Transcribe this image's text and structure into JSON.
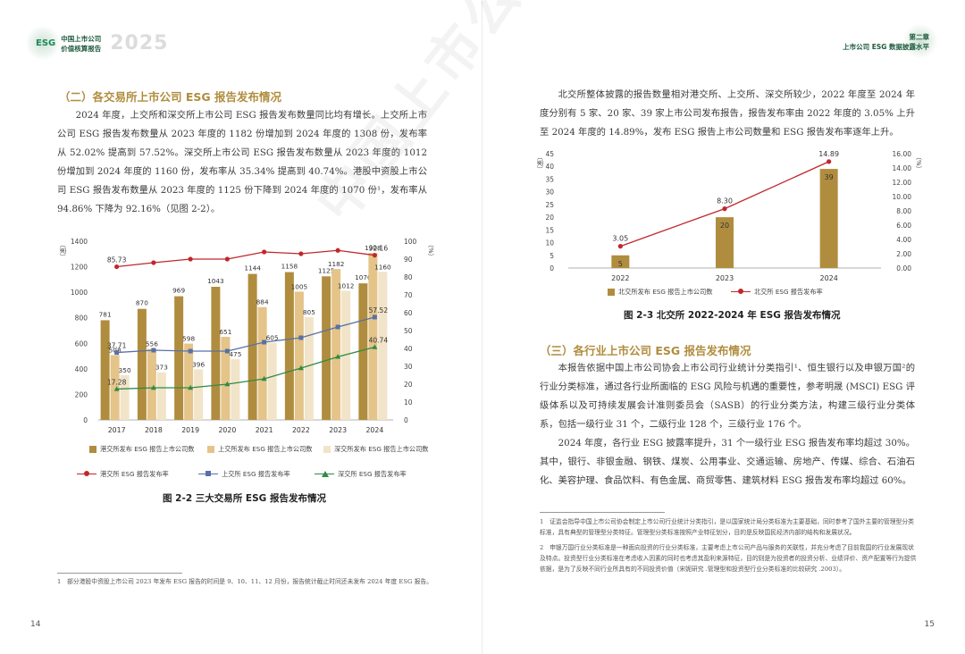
{
  "header": {
    "esg": "ESG",
    "line1": "中国上市公司",
    "line2": "价值核算报告",
    "year": "2025",
    "chapter": "第二章",
    "chapter_title": "上市公司 ESG 数据披露水平"
  },
  "left": {
    "section_title": "（二）各交易所上市公司 ESG 报告发布情况",
    "paragraph": "2024 年度，上交所和深交所上市公司 ESG 报告发布数量同比均有增长。上交所上市公司 ESG 报告发布数量从 2023 年度的 1182 份增加到 2024 年度的 1308 份，发布率从 52.02% 提高到 57.52%。深交所上市公司 ESG 报告发布数量从 2023 年度的 1012 份增加到 2024 年度的 1160 份，发布率从 35.34% 提高到 40.74%。港股中资股上市公司 ESG 报告发布数量从 2023 年度的 1125 份下降到 2024 年度的 1070 份¹，发布率从 94.86% 下降为 92.16%（见图 2-2）。",
    "caption": "图 2-2 三大交易所 ESG 报告发布情况",
    "footnote_num": "1",
    "footnote": "部分港股中资股上市公司 2023 年发布 ESG 报告的时间是 9、10、11、12 月份，报告统计截止时间还未发布 2024 年度 ESG 报告。",
    "page_number": "14"
  },
  "right": {
    "paragraph": "北交所整体披露的报告数量相对港交所、上交所、深交所较少，2022 年度至 2024 年度分别有 5 家、20 家、39 家上市公司发布报告，报告发布率由 2022 年度的 3.05% 上升至 2024 年度的 14.89%，发布 ESG 报告上市公司数量和 ESG 报告发布率逐年上升。",
    "caption": "图 2-3 北交所 2022-2024 年 ESG 报告发布情况",
    "section_title": "（三）各行业上市公司 ESG 报告发布情况",
    "paragraph2": "本报告依据中国上市公司协会上市公司行业统计分类指引¹、恒生银行以及申银万国²的行业分类标准，通过各行业所面临的 ESG 风险与机遇的重要性，参考明晟 (MSCI) ESG 评级体系以及可持续发展会计准则委员会（SASB）的行业分类方法，构建三级行业分类体系，包括一级行业 31 个，二级行业 128 个，三级行业 176 个。",
    "paragraph3": "2024 年度，各行业 ESG 披露率提升，31 个一级行业 ESG 报告发布率均超过 30%。其中，银行、非银金融、钢铁、煤炭、公用事业、交通运输、房地产、传媒、综合、石油石化、美容护理、食品饮料、有色金属、商贸零售、建筑材料 ESG 报告发布率均超过 60%。",
    "footnote1": "1　证监会指导中国上市公司协会制定上市公司行业统计分类指引，是以国家统计局分类标准为主要基础，同时参考了国外主要的管理型分类标准，具有典型的管理型分类特征。管理型分类标准按照产业特征划分，目的是反映国民经济内部的结构和发展状况。",
    "footnote2": "2　申银万国行业分类标准是一种面向投资的行业分类标准，主要考虑上市公司产品与服务的关联性，并充分考虑了目前我国的行业发展现状及特点。投资型行业分类标准在考虑收入因素的同时也考虑其盈利来源特征，目的则是为投资者的投资分析、业绩评价、资产配置等行为提供依据，是为了反映不同行业所具有的不同投资价值（宋妮研究 .管理型和投资型行业分类标准的比较研究 .2003）。",
    "page_number": "15"
  },
  "watermark": "中国上市公司协会",
  "colors": {
    "gold": "#b08d3e",
    "bar_sh": "#e4c489",
    "bar_sz": "#f1e4c8",
    "red": "#c0272d",
    "blue": "#5870a6",
    "green": "#2e8b46"
  },
  "chart_data": [
    {
      "type": "bar",
      "title": "图 2-2 三大交易所 ESG 报告发布情况",
      "categories": [
        "2017",
        "2018",
        "2019",
        "2020",
        "2021",
        "2022",
        "2023",
        "2024"
      ],
      "ylabel_left": "（家）",
      "ylabel_right": "（%）",
      "ylim_left": [
        0,
        1400
      ],
      "ylim_right": [
        0,
        100
      ],
      "yticks_left": [
        "0",
        "200",
        "400",
        "600",
        "800",
        "1000",
        "1200",
        "1400"
      ],
      "yticks_right": [
        "0",
        "10",
        "20",
        "30",
        "40",
        "50",
        "60",
        "70",
        "80",
        "90",
        "100"
      ],
      "bar_series": [
        {
          "name": "港交所发布 ESG 报告上市公司数",
          "values": [
            781,
            870,
            969,
            1043,
            1144,
            1158,
            1125,
            1070
          ]
        },
        {
          "name": "上交所发布 ESG 报告上市公司数",
          "values": [
            508,
            556,
            598,
            651,
            884,
            1005,
            1182,
            1308
          ]
        },
        {
          "name": "深交所发布 ESG 报告上市公司数",
          "values": [
            350,
            373,
            396,
            475,
            605,
            805,
            1012,
            1160
          ]
        }
      ],
      "line_series": [
        {
          "name": "港交所 ESG 报告发布率",
          "values": [
            85.73,
            88,
            90,
            90,
            94,
            93,
            94.86,
            92.16
          ],
          "labels": [
            "85.73",
            "",
            "",
            "",
            "",
            "",
            "",
            "92.16"
          ]
        },
        {
          "name": "上交所 ESG 报告发布率",
          "values": [
            37.71,
            39,
            38.5,
            38.5,
            43.5,
            46,
            52.02,
            57.52
          ],
          "labels": [
            "37.71",
            "",
            "",
            "",
            "",
            "",
            "",
            "57.52"
          ]
        },
        {
          "name": "深交所 ESG 报告发布率",
          "values": [
            17.28,
            18,
            18,
            20,
            23,
            29,
            35.34,
            40.74
          ],
          "labels": [
            "17.28",
            "",
            "",
            "",
            "",
            "",
            "",
            "40.74"
          ]
        }
      ]
    },
    {
      "type": "bar",
      "title": "图 2-3 北交所 2022-2024 年 ESG 报告发布情况",
      "categories": [
        "2022",
        "2023",
        "2024"
      ],
      "ylabel_left": "（家）",
      "ylabel_right": "（%）",
      "ylim_left": [
        0,
        45
      ],
      "ylim_right": [
        0,
        16
      ],
      "yticks_left": [
        "0",
        "5",
        "10",
        "15",
        "20",
        "25",
        "30",
        "35",
        "40",
        "45"
      ],
      "yticks_right": [
        "0.00",
        "2.00",
        "4.00",
        "6.00",
        "8.00",
        "10.00",
        "12.00",
        "14.00",
        "16.00"
      ],
      "bar_series": [
        {
          "name": "北交所发布 ESG 报告上市公司数",
          "values": [
            5,
            20,
            39
          ]
        }
      ],
      "line_series": [
        {
          "name": "北交所 ESG 报告发布率",
          "values": [
            3.05,
            8.3,
            14.89
          ],
          "labels": [
            "3.05",
            "8.30",
            "14.89"
          ]
        }
      ]
    }
  ]
}
